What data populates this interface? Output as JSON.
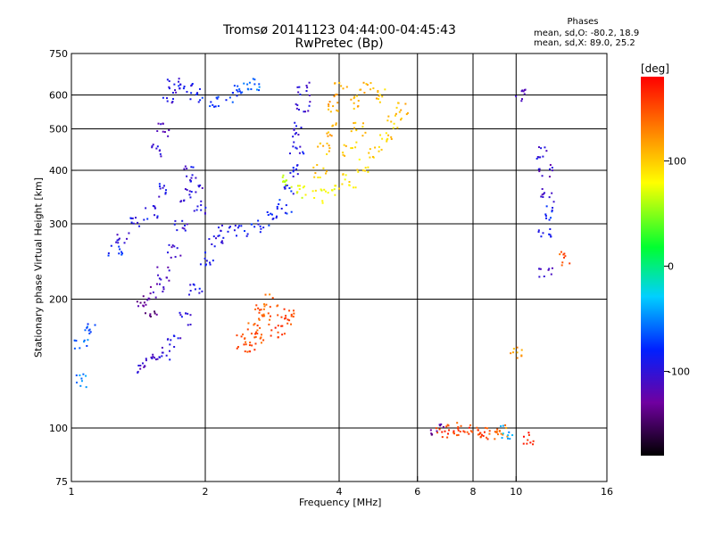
{
  "header": {
    "title_line1": "Tromsø 20141123 04:44:00-04:45:43",
    "title_line2": "RwPretec (Bp)",
    "phases_title": "Phases",
    "phases_o": "mean, sd,O: -80.2, 18.9",
    "phases_x": "mean, sd,X:  89.0, 25.2"
  },
  "colorbar": {
    "unit": "[deg]",
    "range": [
      -180,
      180
    ],
    "ticks": [
      "100",
      "0",
      "-100"
    ],
    "tick_values": [
      100,
      0,
      -100
    ]
  },
  "chart_data": {
    "type": "scatter",
    "xlabel": "Frequency [MHz]",
    "ylabel": "Stationary phase Virtual Height [km]",
    "x_scale": "log",
    "y_scale": "log",
    "xlim": [
      1,
      16
    ],
    "ylim": [
      75,
      750
    ],
    "x_ticks": [
      "1",
      "2",
      "4",
      "6",
      "8",
      "10",
      "16"
    ],
    "x_tick_values": [
      1,
      2,
      4,
      6,
      8,
      10,
      16
    ],
    "x_gridlines": [
      2,
      4,
      6,
      8,
      10
    ],
    "y_ticks": [
      "75",
      "100",
      "200",
      "300",
      "400",
      "500",
      "600",
      "750"
    ],
    "y_tick_values": [
      75,
      100,
      200,
      300,
      400,
      500,
      600,
      750
    ],
    "y_gridlines": [
      100,
      200,
      300,
      400,
      500,
      600
    ],
    "grid": true,
    "marker": "dot",
    "color_encoding": "phase (deg)",
    "series": [
      {
        "points": [
          [
            1.45,
            140,
            -110
          ],
          [
            1.5,
            145,
            -105
          ],
          [
            1.6,
            150,
            -100
          ],
          [
            1.7,
            160,
            -100
          ],
          [
            1.8,
            180,
            -95
          ],
          [
            1.9,
            210,
            -95
          ],
          [
            2.0,
            250,
            -95
          ],
          [
            2.1,
            275,
            -95
          ],
          [
            2.2,
            288,
            -90
          ],
          [
            2.4,
            292,
            -90
          ],
          [
            2.6,
            298,
            -85
          ],
          [
            2.8,
            310,
            -80
          ],
          [
            3.0,
            330,
            -80
          ],
          [
            3.1,
            360,
            -85
          ],
          [
            3.15,
            400,
            -90
          ],
          [
            3.2,
            450,
            -95
          ],
          [
            3.25,
            500,
            -100
          ],
          [
            3.3,
            560,
            -100
          ],
          [
            3.3,
            620,
            -105
          ],
          [
            1.55,
            450,
            -100
          ],
          [
            1.6,
            500,
            -110
          ],
          [
            1.65,
            600,
            -100
          ],
          [
            1.7,
            640,
            -95
          ],
          [
            1.8,
            620,
            -90
          ],
          [
            1.9,
            600,
            -85
          ],
          [
            2.1,
            580,
            -80
          ],
          [
            2.3,
            600,
            -70
          ],
          [
            2.4,
            620,
            -65
          ],
          [
            2.6,
            640,
            -60
          ],
          [
            1.45,
            200,
            -130
          ],
          [
            1.5,
            190,
            -140
          ],
          [
            1.55,
            210,
            -120
          ],
          [
            1.6,
            230,
            -110
          ],
          [
            1.7,
            260,
            -105
          ],
          [
            1.75,
            300,
            -100
          ],
          [
            1.8,
            350,
            -100
          ],
          [
            1.85,
            400,
            -100
          ],
          [
            1.9,
            370,
            -100
          ],
          [
            1.95,
            330,
            -100
          ],
          [
            1.25,
            260,
            -80
          ],
          [
            1.3,
            280,
            -100
          ],
          [
            1.4,
            300,
            -95
          ],
          [
            1.5,
            320,
            -90
          ],
          [
            1.6,
            360,
            -95
          ],
          [
            1.05,
            160,
            -60
          ],
          [
            1.1,
            170,
            -65
          ],
          [
            1.05,
            130,
            -55
          ]
        ]
      },
      {
        "points": [
          [
            3.0,
            380,
            70
          ],
          [
            3.3,
            360,
            75
          ],
          [
            3.6,
            350,
            80
          ],
          [
            3.9,
            360,
            85
          ],
          [
            4.2,
            380,
            90
          ],
          [
            4.5,
            410,
            90
          ],
          [
            4.8,
            440,
            95
          ],
          [
            5.1,
            480,
            100
          ],
          [
            5.3,
            520,
            100
          ],
          [
            5.5,
            560,
            105
          ],
          [
            3.6,
            400,
            100
          ],
          [
            3.7,
            450,
            105
          ],
          [
            3.8,
            500,
            110
          ],
          [
            3.9,
            560,
            115
          ],
          [
            4.0,
            620,
            115
          ],
          [
            4.3,
            580,
            110
          ],
          [
            4.6,
            620,
            110
          ],
          [
            5.0,
            600,
            105
          ],
          [
            4.2,
            450,
            100
          ],
          [
            4.4,
            500,
            105
          ]
        ]
      },
      {
        "points": [
          [
            2.4,
            160,
            150
          ],
          [
            2.5,
            155,
            155
          ],
          [
            2.6,
            165,
            150
          ],
          [
            2.7,
            180,
            145
          ],
          [
            2.8,
            200,
            140
          ],
          [
            2.55,
            170,
            150
          ],
          [
            2.65,
            190,
            145
          ],
          [
            2.9,
            170,
            160
          ],
          [
            3.0,
            180,
            155
          ],
          [
            3.1,
            185,
            150
          ]
        ]
      },
      {
        "points": [
          [
            6.8,
            99,
            155
          ],
          [
            7.2,
            99,
            160
          ],
          [
            7.6,
            100,
            150
          ],
          [
            8.0,
            99,
            160
          ],
          [
            8.4,
            99,
            155
          ],
          [
            8.8,
            98,
            150
          ],
          [
            9.2,
            99,
            130
          ],
          [
            9.5,
            98,
            -40
          ],
          [
            6.6,
            100,
            -130
          ],
          [
            10.0,
            150,
            120
          ],
          [
            11.6,
            400,
            -110
          ],
          [
            11.7,
            350,
            -110
          ],
          [
            11.5,
            440,
            -100
          ],
          [
            11.6,
            290,
            -90
          ],
          [
            11.8,
            320,
            -80
          ],
          [
            11.6,
            230,
            -110
          ],
          [
            12.8,
            250,
            150
          ],
          [
            10.6,
            95,
            170
          ],
          [
            10.3,
            605,
            -120
          ]
        ]
      }
    ]
  }
}
